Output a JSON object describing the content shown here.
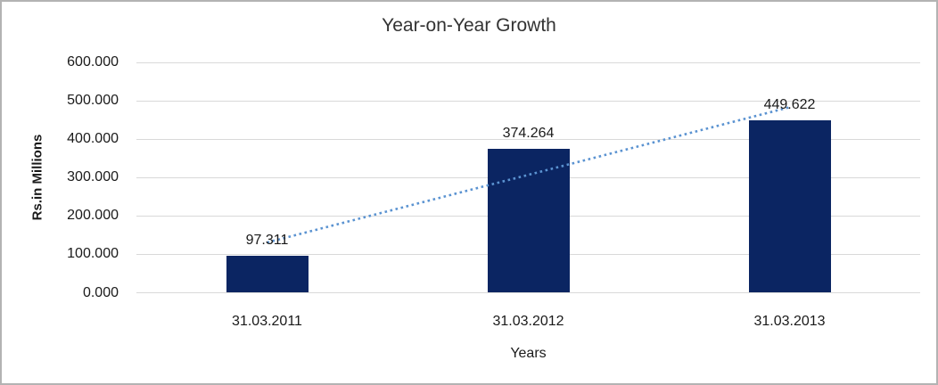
{
  "chart_data": {
    "type": "bar",
    "title": "Year-on-Year Growth",
    "xlabel": "Years",
    "ylabel": "Rs.in Millions",
    "categories": [
      "31.03.2011",
      "31.03.2012",
      "31.03.2013"
    ],
    "values": [
      97.311,
      374.264,
      449.622
    ],
    "data_labels": [
      "97.311",
      "374.264",
      "449.622"
    ],
    "ytick_labels": [
      "600.000",
      "500.000",
      "400.000",
      "300.000",
      "200.000",
      "100.000",
      "0.000"
    ],
    "ylim": [
      0,
      600
    ],
    "grid": true,
    "legend_position": "none",
    "bar_color": "#0b2562",
    "trendline": {
      "type": "linear",
      "style": "dotted",
      "color": "#5b93d1"
    },
    "gridline_color": "#d9d9d9",
    "frame_border_color": "#b3b3b3"
  }
}
